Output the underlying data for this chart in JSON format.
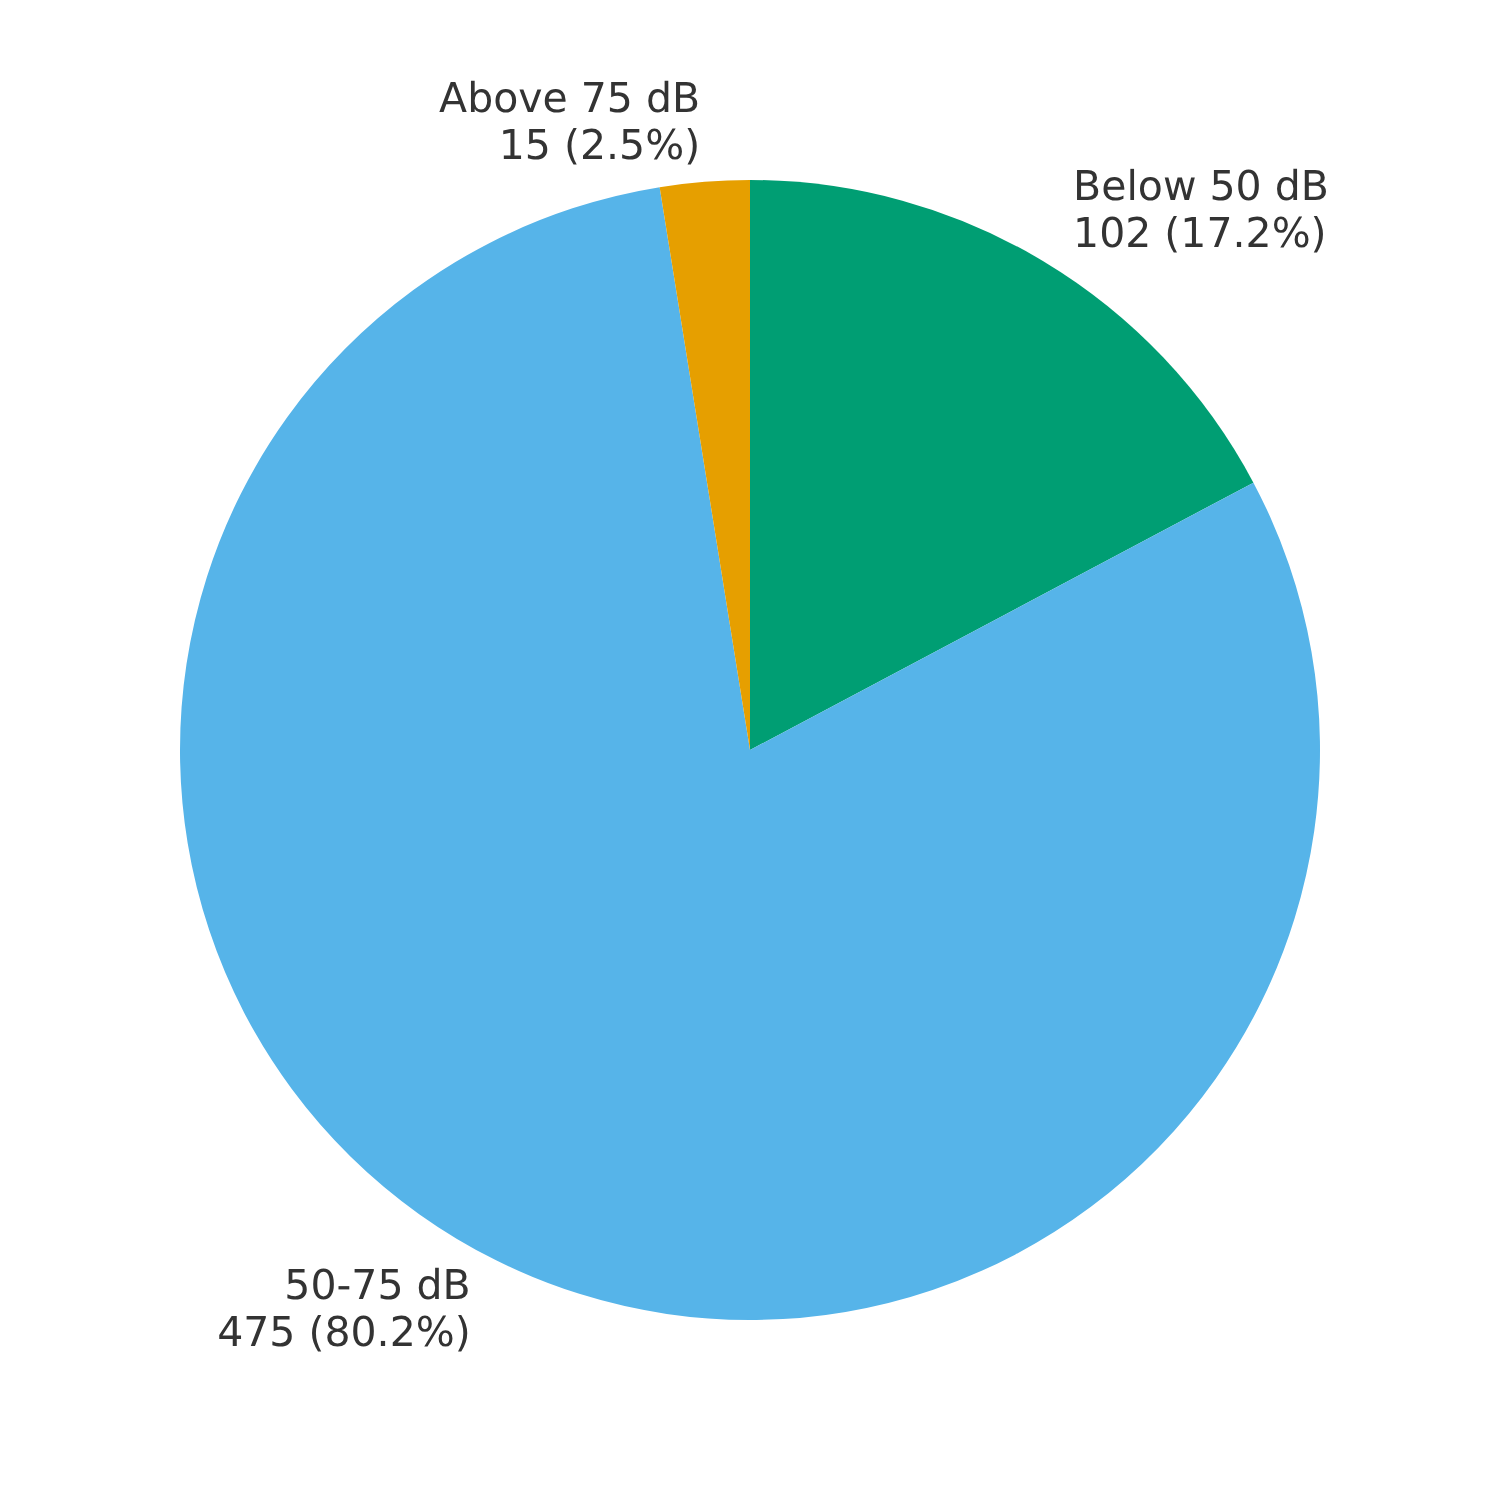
{
  "chart_data": {
    "type": "pie",
    "categories": [
      "Below 50 dB",
      "50-75 dB",
      "Above 75 dB"
    ],
    "values": [
      102,
      475,
      15
    ],
    "colors": [
      "#009e73",
      "#56b4e9",
      "#e69f00"
    ],
    "value_labels": [
      "102 (17.2%)",
      "475 (80.2%)",
      "15 (2.5%)"
    ],
    "legend": false
  }
}
